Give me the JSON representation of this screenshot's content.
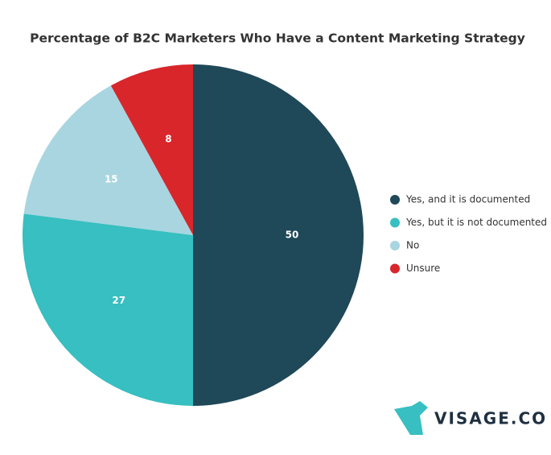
{
  "chart_data": {
    "type": "pie",
    "title": "Percentage of B2C Marketers Who Have a Content Marketing Strategy",
    "categories": [
      "Yes, and it is documented",
      "Yes, but it is not documented",
      "No",
      "Unsure"
    ],
    "values": [
      50,
      27,
      15,
      8
    ],
    "colors": [
      "#1f4858",
      "#37bfc1",
      "#a8d5e0",
      "#d8262b"
    ],
    "legend": "right"
  },
  "brand": "VISAGE.CO"
}
